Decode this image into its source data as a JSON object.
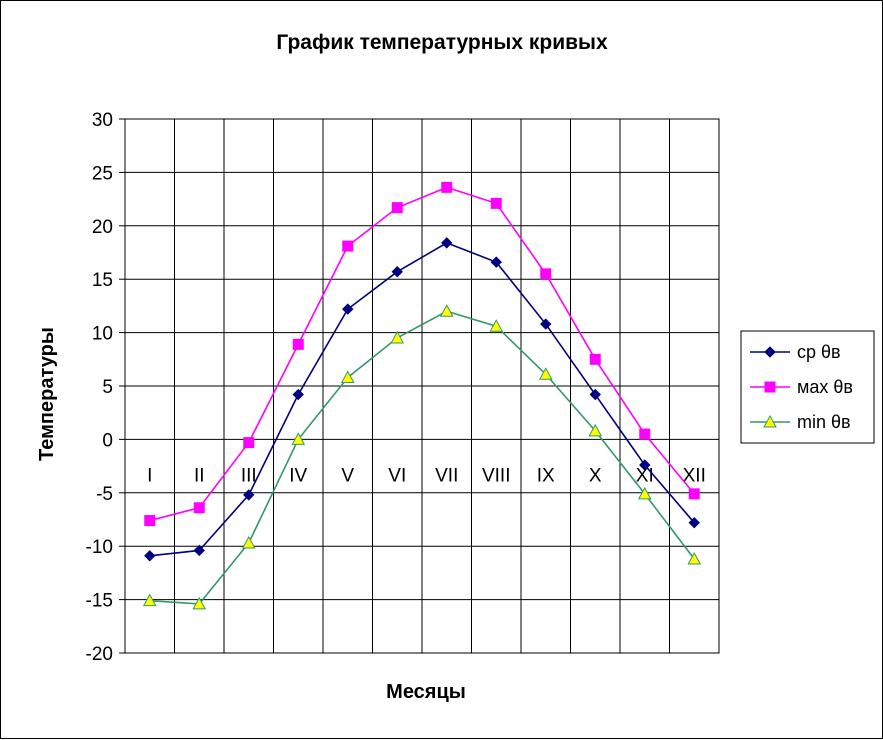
{
  "chart_data": {
    "type": "line",
    "title": "График температурных кривых",
    "xlabel": "Месяцы",
    "ylabel": "Температуры",
    "categories": [
      "I",
      "II",
      "III",
      "IV",
      "V",
      "VI",
      "VII",
      "VIII",
      "IX",
      "X",
      "XI",
      "XII"
    ],
    "ylim": [
      -20,
      30
    ],
    "yticks": [
      30,
      25,
      20,
      15,
      10,
      5,
      0,
      -5,
      -10,
      -15,
      -20
    ],
    "grid": true,
    "legend_position": "right",
    "series": [
      {
        "name": "ср θв",
        "color": "#000080",
        "marker": "diamond",
        "values": [
          -10.9,
          -10.4,
          -5.2,
          4.2,
          12.2,
          15.7,
          18.4,
          16.6,
          10.8,
          4.2,
          -2.4,
          -7.8
        ]
      },
      {
        "name": "мах θв",
        "color": "#FF00FF",
        "marker": "square",
        "values": [
          -7.6,
          -6.4,
          -0.3,
          8.9,
          18.1,
          21.7,
          23.6,
          22.1,
          15.5,
          7.5,
          0.5,
          -5.1
        ]
      },
      {
        "name": "min θв",
        "color": "#339966",
        "marker": "triangle",
        "marker_fill": "#FFFF00",
        "values": [
          -15.1,
          -15.4,
          -9.7,
          0.0,
          5.8,
          9.5,
          12.0,
          10.6,
          6.1,
          0.8,
          -5.1,
          -11.2
        ]
      }
    ]
  }
}
